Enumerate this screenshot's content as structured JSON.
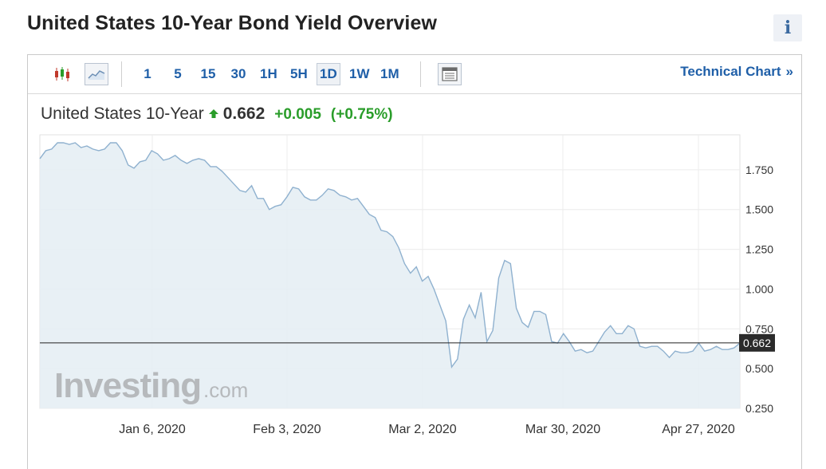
{
  "page": {
    "title": "United States 10-Year Bond Yield Overview",
    "info_label": "i"
  },
  "toolbar": {
    "chart_icons": [
      "candlestick-icon",
      "area-line-icon"
    ],
    "timeframes": [
      {
        "label": "1",
        "active": false
      },
      {
        "label": "5",
        "active": false
      },
      {
        "label": "15",
        "active": false
      },
      {
        "label": "30",
        "active": false
      },
      {
        "label": "1H",
        "active": false
      },
      {
        "label": "5H",
        "active": false
      },
      {
        "label": "1D",
        "active": true
      },
      {
        "label": "1W",
        "active": false
      },
      {
        "label": "1M",
        "active": false
      }
    ],
    "table_icon": "data-table-icon",
    "technical_link": "Technical Chart",
    "technical_chevron": "»"
  },
  "quote": {
    "name": "United States 10-Year",
    "price": "0.662",
    "change": "+0.005",
    "change_pct": "(+0.75%)",
    "direction_icon": "arrow-up-icon",
    "up_color": "#2a9d2a"
  },
  "chart_data": {
    "type": "area",
    "watermark": {
      "brand": "Investing",
      "suffix": ".com"
    },
    "x_tick_labels": [
      "Jan 6, 2020",
      "Feb 3, 2020",
      "Mar 2, 2020",
      "Mar 30, 2020",
      "Apr 27, 2020"
    ],
    "y_ticks": [
      1.75,
      1.5,
      1.25,
      1.0,
      0.75,
      0.5,
      0.25
    ],
    "y_tick_labels": [
      "1.750",
      "1.500",
      "1.250",
      "1.000",
      "0.750",
      "0.500",
      "0.250"
    ],
    "ylim": [
      0.25,
      1.97
    ],
    "current_value": 0.662,
    "current_label": "0.662",
    "line_color": "#8fb1cf",
    "fill_color": "#e6eef4",
    "series": [
      {
        "values": [
          1.82,
          1.87,
          1.88,
          1.92,
          1.92,
          1.91,
          1.92,
          1.89,
          1.9,
          1.88,
          1.87,
          1.88,
          1.92,
          1.92,
          1.87,
          1.78,
          1.76,
          1.8,
          1.81,
          1.87,
          1.85,
          1.81,
          1.82,
          1.84,
          1.81,
          1.79,
          1.81,
          1.82,
          1.81,
          1.77,
          1.77,
          1.74,
          1.7,
          1.66,
          1.62,
          1.61,
          1.65,
          1.57,
          1.57,
          1.5,
          1.52,
          1.53,
          1.58,
          1.64,
          1.63,
          1.58,
          1.56,
          1.56,
          1.59,
          1.63,
          1.62,
          1.59,
          1.58,
          1.56,
          1.57,
          1.52,
          1.47,
          1.45,
          1.37,
          1.36,
          1.33,
          1.26,
          1.16,
          1.1,
          1.14,
          1.05,
          1.08,
          1.0,
          0.9,
          0.8,
          0.51,
          0.56,
          0.81,
          0.9,
          0.82,
          0.98,
          0.67,
          0.74,
          1.07,
          1.18,
          1.16,
          0.88,
          0.79,
          0.76,
          0.86,
          0.86,
          0.84,
          0.67,
          0.66,
          0.72,
          0.67,
          0.61,
          0.62,
          0.6,
          0.61,
          0.67,
          0.73,
          0.77,
          0.72,
          0.72,
          0.77,
          0.75,
          0.64,
          0.63,
          0.64,
          0.64,
          0.61,
          0.57,
          0.61,
          0.6,
          0.6,
          0.61,
          0.66,
          0.61,
          0.62,
          0.64,
          0.62,
          0.62,
          0.63,
          0.66
        ]
      }
    ]
  }
}
